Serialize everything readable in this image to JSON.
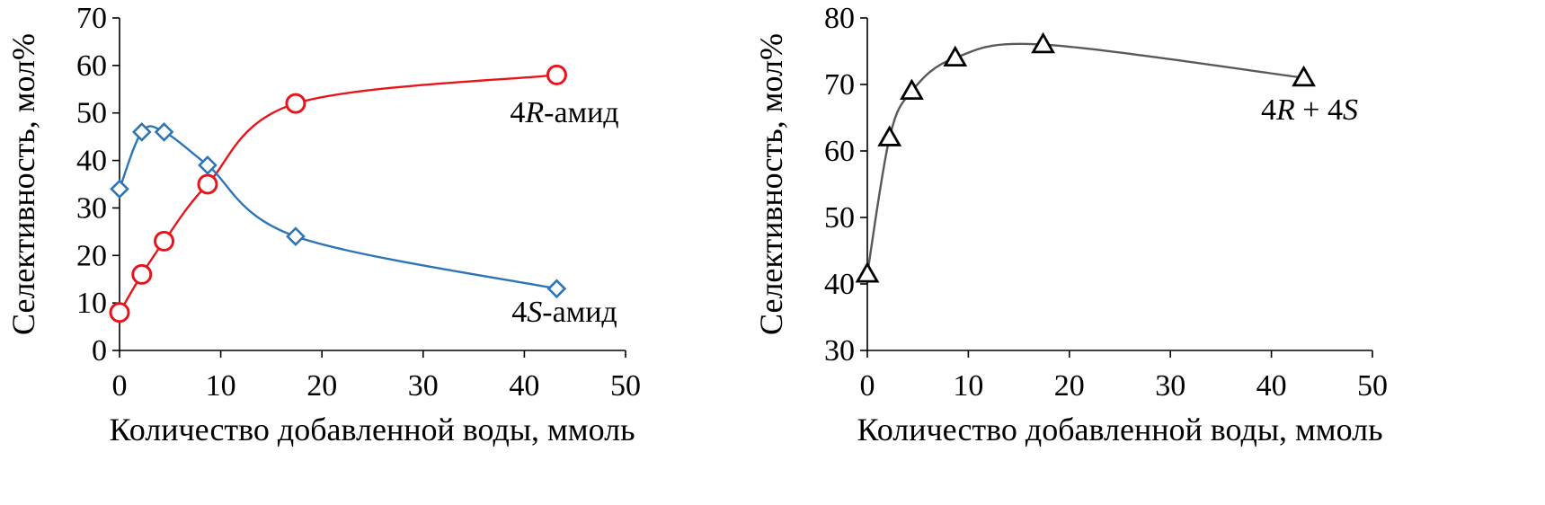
{
  "chart_data": [
    {
      "type": "line",
      "xlabel": "Количество добавленной воды, ммоль",
      "ylabel": "Селективность, мол%",
      "xlim": [
        0,
        50
      ],
      "ylim": [
        0,
        70
      ],
      "xticks": [
        "0",
        "10",
        "20",
        "30",
        "40",
        "50"
      ],
      "yticks": [
        "0",
        "10",
        "20",
        "30",
        "40",
        "50",
        "60",
        "70"
      ],
      "grid": false,
      "series": [
        {
          "name": "4R-амид",
          "label_parts": [
            "4",
            "R",
            "-амид"
          ],
          "color": "#e8141c",
          "marker": "circle",
          "points": [
            [
              0,
              8
            ],
            [
              2.2,
              16
            ],
            [
              4.4,
              23
            ],
            [
              8.7,
              35
            ],
            [
              17.4,
              52
            ],
            [
              43.2,
              58
            ]
          ]
        },
        {
          "name": "4S-амид",
          "label_parts": [
            "4",
            "S",
            "-амид"
          ],
          "color": "#2e75b6",
          "marker": "diamond",
          "points": [
            [
              0,
              34
            ],
            [
              2.2,
              46
            ],
            [
              4.4,
              46
            ],
            [
              8.7,
              39
            ],
            [
              17.4,
              24
            ],
            [
              43.2,
              13
            ]
          ]
        }
      ]
    },
    {
      "type": "line",
      "xlabel": "Количество добавленной воды, ммоль",
      "ylabel": "Селективность, мол%",
      "xlim": [
        0,
        50
      ],
      "ylim": [
        30,
        80
      ],
      "xticks": [
        "0",
        "10",
        "20",
        "30",
        "40",
        "50"
      ],
      "yticks": [
        "30",
        "40",
        "50",
        "60",
        "70",
        "80"
      ],
      "grid": false,
      "series": [
        {
          "name": "4R + 4S",
          "label_parts": [
            "4",
            "R",
            " + 4",
            "S"
          ],
          "color": "#595959",
          "marker": "triangle",
          "points": [
            [
              0,
              41.5
            ],
            [
              2.2,
              62
            ],
            [
              4.4,
              69
            ],
            [
              8.7,
              74
            ],
            [
              17.4,
              76
            ],
            [
              43.2,
              71
            ]
          ]
        }
      ]
    }
  ]
}
